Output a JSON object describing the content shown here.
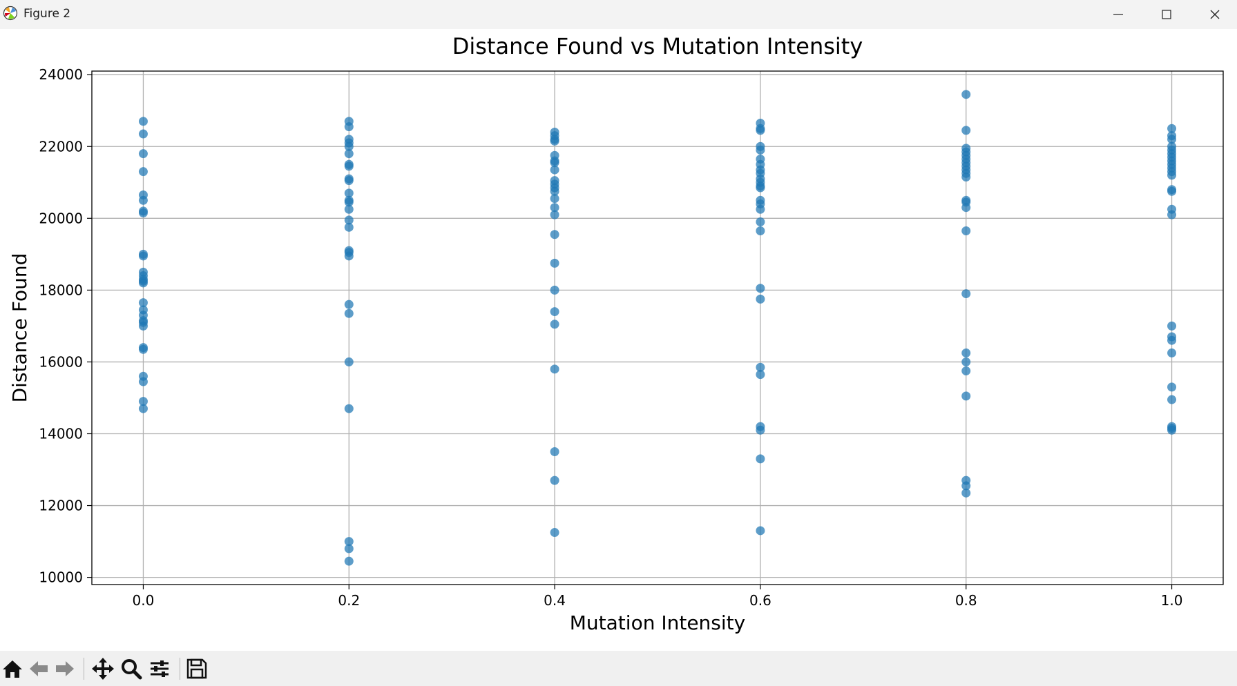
{
  "window": {
    "title": "Figure 2"
  },
  "toolbar": {
    "buttons": [
      {
        "name": "home-icon"
      },
      {
        "name": "back-arrow-icon"
      },
      {
        "name": "forward-arrow-icon"
      },
      {
        "name": "pan-icon"
      },
      {
        "name": "zoom-icon"
      },
      {
        "name": "configure-subplots-icon"
      },
      {
        "name": "save-icon"
      }
    ]
  },
  "colors": {
    "point": "#1f77b4",
    "grid": "#b0b0b0",
    "axis": "#000000"
  },
  "chart_data": {
    "type": "scatter",
    "title": "Distance Found vs Mutation Intensity",
    "xlabel": "Mutation Intensity",
    "ylabel": "Distance Found",
    "xlim": [
      -0.05,
      1.05
    ],
    "ylim": [
      9800,
      24100
    ],
    "xticks": [
      0.0,
      0.2,
      0.4,
      0.6,
      0.8,
      1.0
    ],
    "xtick_labels": [
      "0.0",
      "0.2",
      "0.4",
      "0.6",
      "0.8",
      "1.0"
    ],
    "yticks": [
      10000,
      12000,
      14000,
      16000,
      18000,
      20000,
      22000,
      24000
    ],
    "ytick_labels": [
      "10000",
      "12000",
      "14000",
      "16000",
      "18000",
      "20000",
      "22000",
      "24000"
    ],
    "grid": true,
    "series": [
      {
        "x": 0.0,
        "y": [
          22700,
          22350,
          21800,
          21300,
          20650,
          20500,
          20200,
          20150,
          19000,
          18950,
          18500,
          18400,
          18300,
          18250,
          18200,
          17650,
          17450,
          17300,
          17150,
          17100,
          17000,
          16400,
          16350,
          15600,
          15450,
          14900,
          14700
        ]
      },
      {
        "x": 0.2,
        "y": [
          22700,
          22550,
          22200,
          22100,
          22000,
          21800,
          21500,
          21450,
          21100,
          21050,
          20700,
          20500,
          20450,
          20250,
          19950,
          19750,
          19100,
          19050,
          18950,
          17600,
          17350,
          16000,
          14700,
          11000,
          10800,
          10450
        ]
      },
      {
        "x": 0.4,
        "y": [
          22400,
          22300,
          22200,
          22150,
          21750,
          21600,
          21550,
          21350,
          21050,
          20950,
          20850,
          20750,
          20550,
          20300,
          20100,
          19550,
          18750,
          18000,
          17400,
          17050,
          15800,
          13500,
          12700,
          11250
        ]
      },
      {
        "x": 0.6,
        "y": [
          22650,
          22500,
          22450,
          22000,
          21900,
          21650,
          21500,
          21350,
          21250,
          21100,
          21000,
          20900,
          20850,
          20500,
          20400,
          20250,
          19900,
          19650,
          18050,
          17750,
          15850,
          15650,
          14200,
          14100,
          13300,
          11300
        ]
      },
      {
        "x": 0.8,
        "y": [
          23450,
          22450,
          21950,
          21850,
          21750,
          21650,
          21550,
          21450,
          21350,
          21250,
          21150,
          20500,
          20450,
          20300,
          19650,
          17900,
          16250,
          16000,
          15750,
          15050,
          12700,
          12550,
          12350
        ]
      },
      {
        "x": 1.0,
        "y": [
          22500,
          22300,
          22200,
          22000,
          21900,
          21800,
          21700,
          21600,
          21500,
          21400,
          21300,
          21200,
          20800,
          20750,
          20250,
          20100,
          17000,
          16700,
          16600,
          16250,
          15300,
          14950,
          14200,
          14150,
          14100
        ]
      }
    ]
  }
}
